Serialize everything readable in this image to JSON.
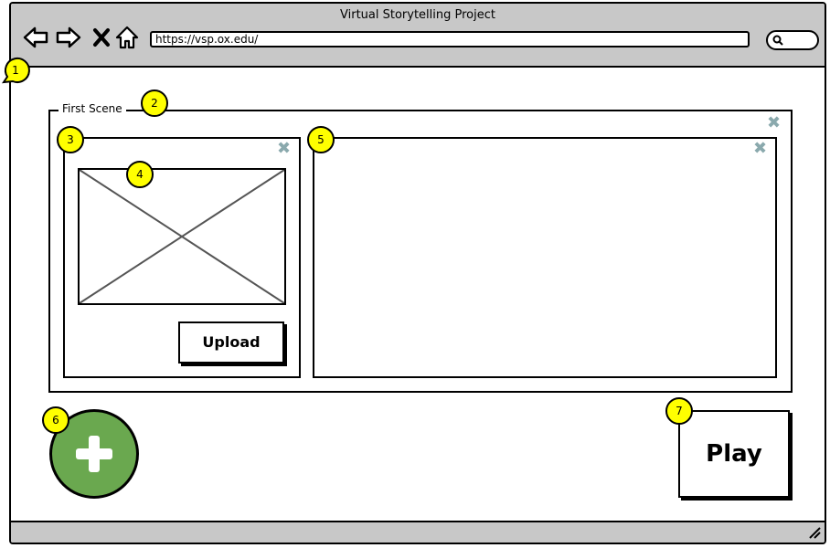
{
  "window": {
    "title": "Virtual Storytelling Project"
  },
  "toolbar": {
    "url": "https://vsp.ox.edu/",
    "icons": [
      "back-icon",
      "forward-icon",
      "stop-icon",
      "home-icon",
      "search-icon"
    ]
  },
  "scene": {
    "legend": "First Scene",
    "upload_label": "Upload"
  },
  "actions": {
    "play_label": "Play",
    "add_icon": "plus-icon"
  },
  "callouts": [
    "1",
    "2",
    "3",
    "4",
    "5",
    "6",
    "7"
  ],
  "colors": {
    "chrome": "#c8c8c8",
    "add_button": "#6aa84f",
    "close_icon": "#8aa9ad",
    "callout": "#ffff00"
  }
}
